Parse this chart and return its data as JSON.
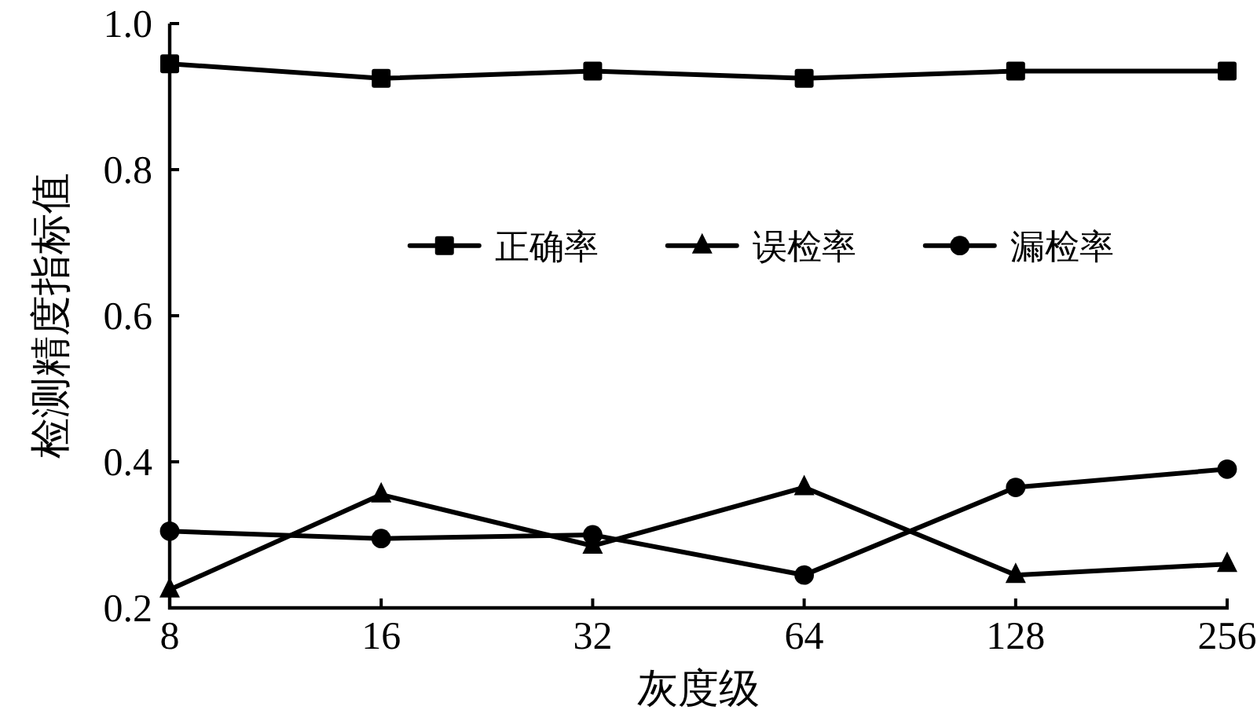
{
  "chart_data": {
    "type": "line",
    "xlabel": "灰度级",
    "ylabel": "检测精度指标值",
    "categories": [
      "8",
      "16",
      "32",
      "64",
      "128",
      "256"
    ],
    "ylim": [
      0.2,
      1.0
    ],
    "yticks": [
      0.2,
      0.4,
      0.6,
      0.8,
      {
        "value": 1.0,
        "label": "1.0"
      }
    ],
    "series": [
      {
        "name": "正确率",
        "color": "#000000",
        "marker": "square",
        "values": [
          0.945,
          0.925,
          0.935,
          0.925,
          0.935,
          0.935
        ]
      },
      {
        "name": "误检率",
        "color": "#000000",
        "marker": "triangle",
        "values": [
          0.225,
          0.355,
          0.285,
          0.365,
          0.245,
          0.26
        ]
      },
      {
        "name": "漏检率",
        "color": "#000000",
        "marker": "circle",
        "values": [
          0.305,
          0.295,
          0.3,
          0.245,
          0.365,
          0.39
        ]
      }
    ],
    "legend": "center",
    "line_style": "solid"
  }
}
